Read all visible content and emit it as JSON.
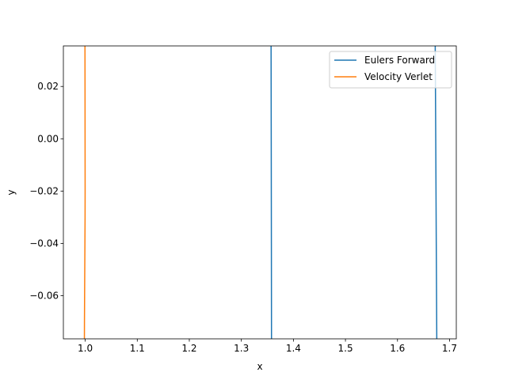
{
  "chart_data": {
    "type": "line",
    "xlabel": "x",
    "ylabel": "y",
    "xlim": [
      0.958,
      1.713
    ],
    "ylim": [
      -0.0765,
      0.0355
    ],
    "xticks": [
      1.0,
      1.1,
      1.2,
      1.3,
      1.4,
      1.5,
      1.6,
      1.7
    ],
    "xtick_labels": [
      "1.0",
      "1.1",
      "1.2",
      "1.3",
      "1.4",
      "1.5",
      "1.6",
      "1.7"
    ],
    "yticks": [
      0.02,
      0.0,
      -0.02,
      -0.04,
      -0.06
    ],
    "ytick_labels": [
      "0.02",
      "0.00",
      "−0.02",
      "−0.04",
      "−0.06"
    ],
    "grid": false,
    "legend_position": "upper-right",
    "series": [
      {
        "name": "Eulers Forward",
        "color": "#1f77b4",
        "segments": [
          [
            [
              1.3571,
              0.0355
            ],
            [
              1.3574,
              0.0
            ],
            [
              1.3577,
              -0.04
            ],
            [
              1.3579,
              -0.0765
            ]
          ],
          [
            [
              1.6725,
              0.0355
            ],
            [
              1.6735,
              0.0
            ],
            [
              1.6745,
              -0.04
            ],
            [
              1.6755,
              -0.0765
            ]
          ]
        ]
      },
      {
        "name": "Velocity Verlet",
        "color": "#ff7f0e",
        "segments": [
          [
            [
              0.9995,
              0.0355
            ],
            [
              0.9996,
              0.02
            ],
            [
              0.9997,
              0.0
            ],
            [
              0.9998,
              -0.02
            ],
            [
              0.9997,
              -0.03
            ],
            [
              0.9994,
              -0.04
            ],
            [
              0.9991,
              -0.05
            ],
            [
              0.9988,
              -0.06
            ],
            [
              0.9985,
              -0.07
            ],
            [
              0.9984,
              -0.0765
            ]
          ]
        ]
      }
    ]
  }
}
